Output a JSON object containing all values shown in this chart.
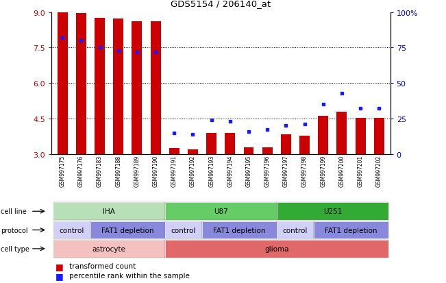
{
  "title": "GDS5154 / 206140_at",
  "samples": [
    "GSM997175",
    "GSM997176",
    "GSM997183",
    "GSM997188",
    "GSM997189",
    "GSM997190",
    "GSM997191",
    "GSM997192",
    "GSM997193",
    "GSM997194",
    "GSM997195",
    "GSM997196",
    "GSM997197",
    "GSM997198",
    "GSM997199",
    "GSM997200",
    "GSM997201",
    "GSM997202"
  ],
  "transformed_count": [
    9.0,
    8.95,
    8.75,
    8.72,
    8.62,
    8.6,
    3.25,
    3.18,
    3.88,
    3.88,
    3.27,
    3.27,
    3.82,
    3.77,
    4.62,
    4.78,
    4.52,
    4.52
  ],
  "percentile_rank": [
    82,
    80,
    75,
    73,
    72,
    72,
    15,
    14,
    24,
    23,
    16,
    17,
    20,
    21,
    35,
    43,
    32,
    32
  ],
  "ylim_left": [
    3,
    9
  ],
  "ylim_right": [
    0,
    100
  ],
  "yticks_left": [
    3,
    4.5,
    6,
    7.5,
    9
  ],
  "yticks_right": [
    0,
    25,
    50,
    75,
    100
  ],
  "bar_color": "#cc0000",
  "dot_color": "#1a1aff",
  "cell_line_groups": [
    {
      "label": "IHA",
      "start": 0,
      "end": 5,
      "color": "#b8e0b8"
    },
    {
      "label": "U87",
      "start": 6,
      "end": 11,
      "color": "#66cc66"
    },
    {
      "label": "U251",
      "start": 12,
      "end": 17,
      "color": "#33aa33"
    }
  ],
  "protocol_groups": [
    {
      "label": "control",
      "start": 0,
      "end": 1,
      "color": "#d0d0f8"
    },
    {
      "label": "FAT1 depletion",
      "start": 2,
      "end": 5,
      "color": "#8888dd"
    },
    {
      "label": "control",
      "start": 6,
      "end": 7,
      "color": "#d0d0f8"
    },
    {
      "label": "FAT1 depletion",
      "start": 8,
      "end": 11,
      "color": "#8888dd"
    },
    {
      "label": "control",
      "start": 12,
      "end": 13,
      "color": "#d0d0f8"
    },
    {
      "label": "FAT1 depletion",
      "start": 14,
      "end": 17,
      "color": "#8888dd"
    }
  ],
  "cell_type_groups": [
    {
      "label": "astrocyte",
      "start": 0,
      "end": 5,
      "color": "#f5c0c0"
    },
    {
      "label": "glioma",
      "start": 6,
      "end": 17,
      "color": "#e06868"
    }
  ],
  "bg_color": "#ffffff",
  "axis_color_left": "#cc0000",
  "axis_color_right": "#0000cc"
}
